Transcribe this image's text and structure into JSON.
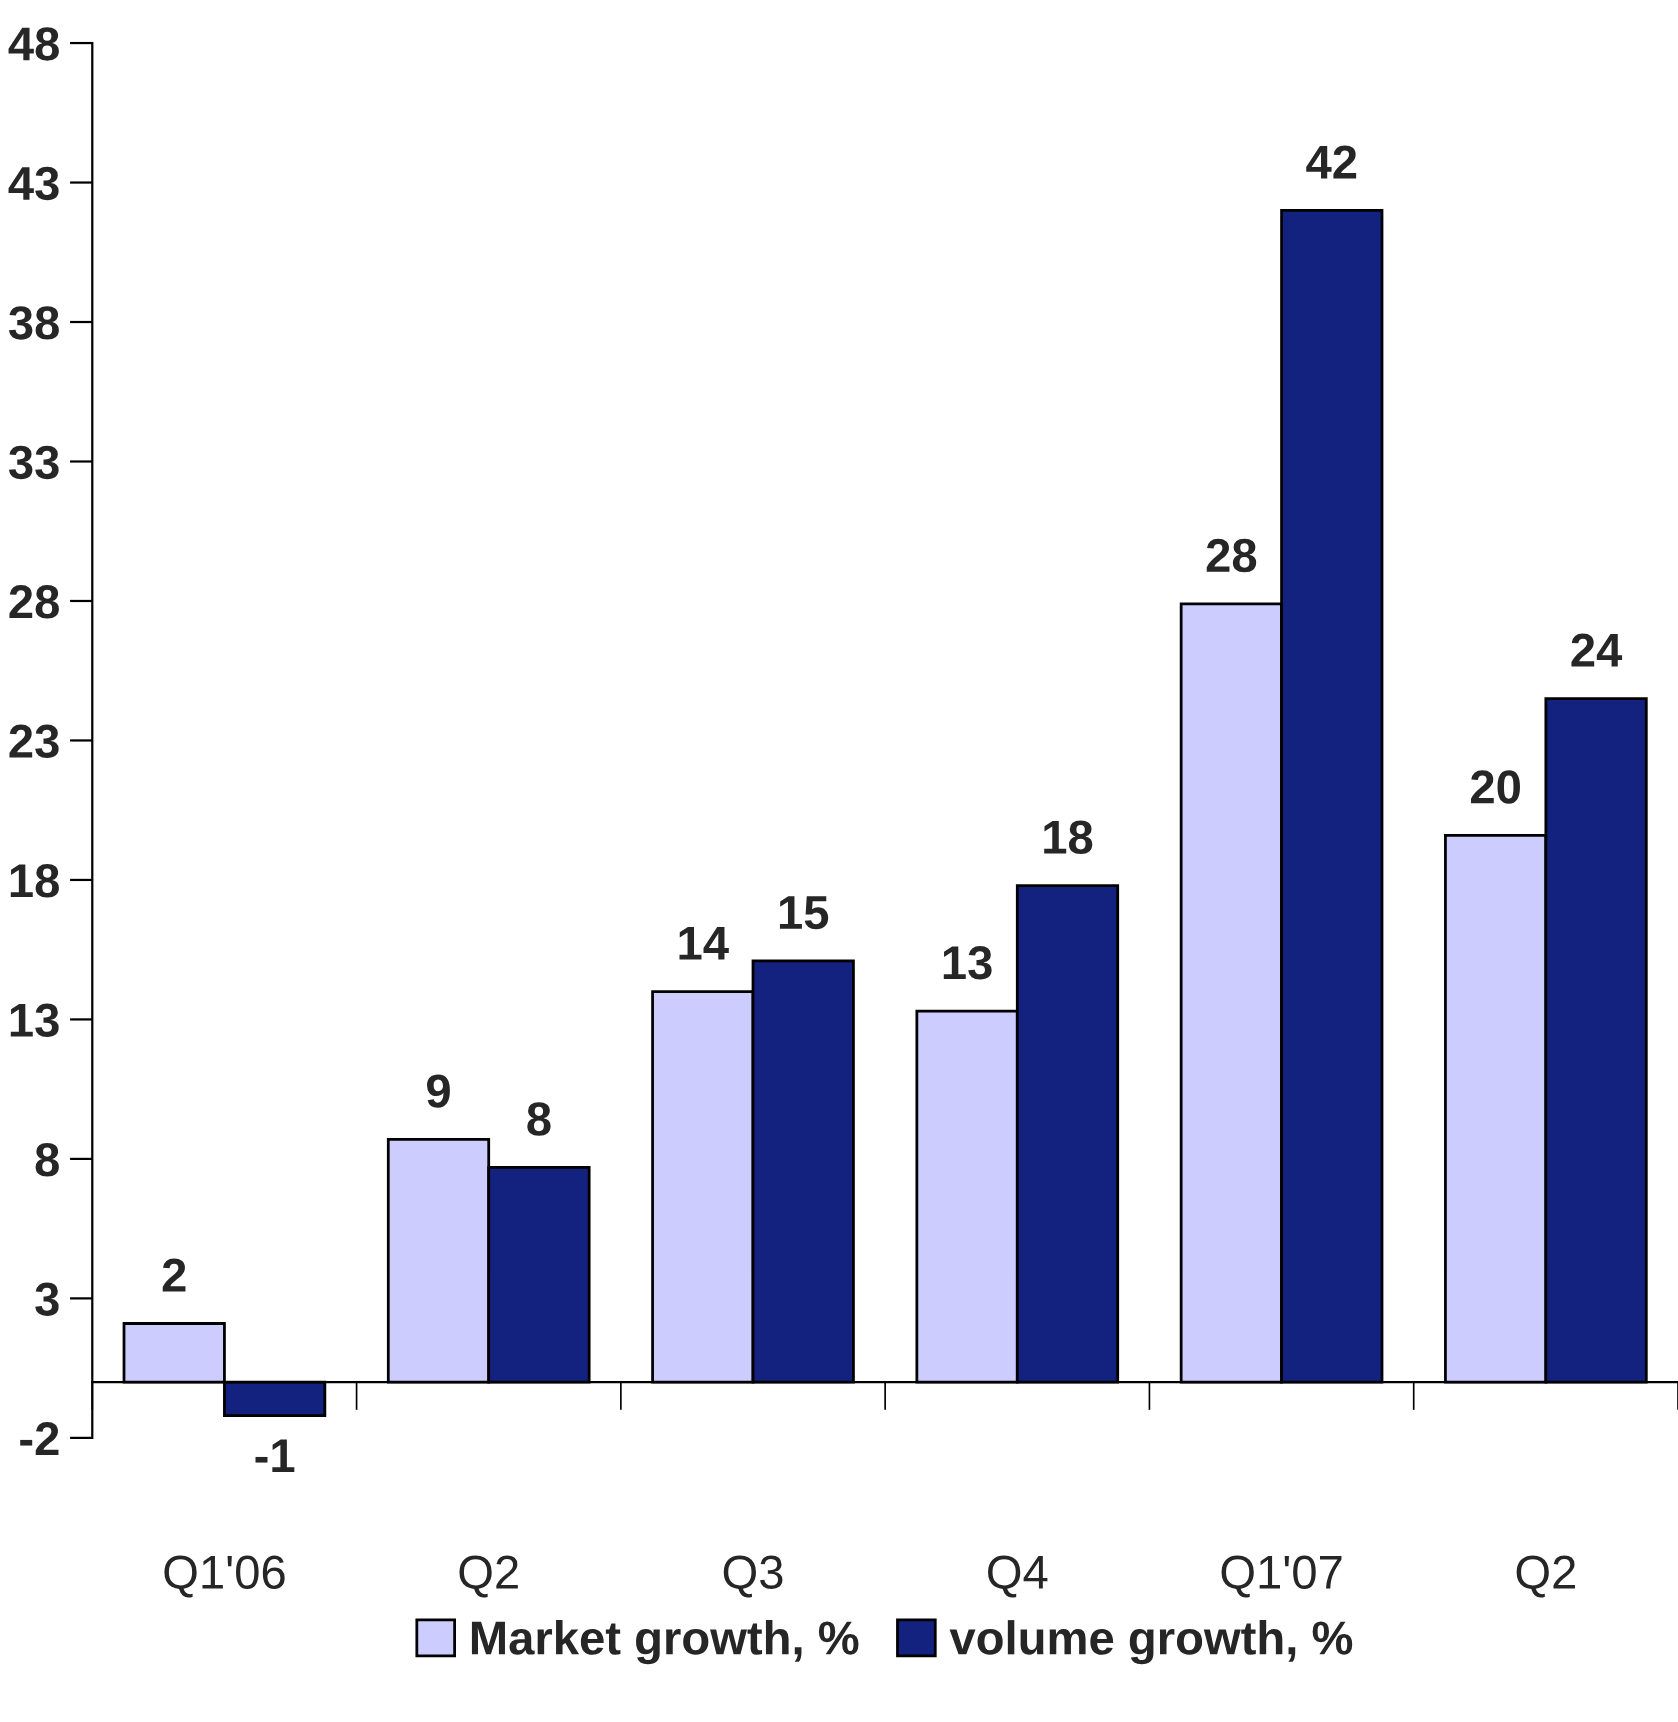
{
  "chart_data": {
    "type": "bar",
    "categories": [
      "Q1'06",
      "Q2",
      "Q3",
      "Q4",
      "Q1'07",
      "Q2"
    ],
    "series": [
      {
        "name": "Market growth, %",
        "color": "#ccccff",
        "values": [
          2.1,
          8.7,
          14.0,
          13.3,
          27.9,
          19.6
        ],
        "value_labels": [
          "2",
          "9",
          "14",
          "13",
          "28",
          "20"
        ]
      },
      {
        "name": "volume growth, %",
        "color": "#13217f",
        "values": [
          -1.2,
          7.7,
          15.1,
          17.8,
          42.0,
          24.5
        ],
        "value_labels": [
          "-1",
          "8",
          "15",
          "18",
          "42",
          "24"
        ]
      }
    ],
    "ylim": [
      -2,
      48
    ],
    "yticks": [
      -2,
      3,
      8,
      13,
      18,
      23,
      28,
      33,
      38,
      43,
      48
    ],
    "grid": false,
    "legend": "bottom"
  }
}
